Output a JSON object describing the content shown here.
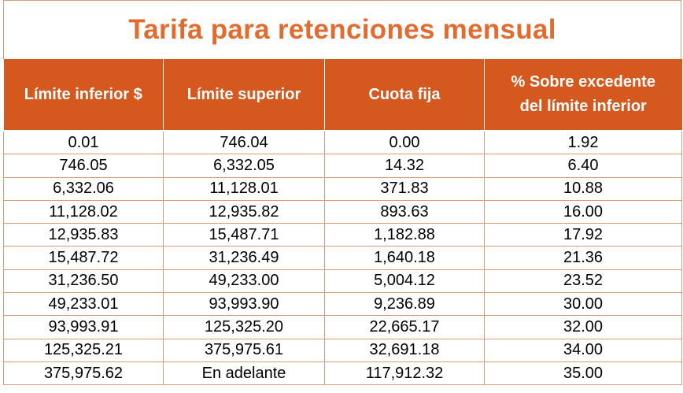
{
  "title": "Tarifa para retenciones mensual",
  "headers": {
    "col1": "Límite inferior $",
    "col2": "Límite superior",
    "col3": "Cuota fija",
    "col4_line1": "% Sobre excedente",
    "col4_line2": "del límite inferior"
  },
  "rows": [
    [
      "0.01",
      "746.04",
      "0.00",
      "1.92"
    ],
    [
      "746.05",
      "6,332.05",
      "14.32",
      "6.40"
    ],
    [
      "6,332.06",
      "11,128.01",
      "371.83",
      "10.88"
    ],
    [
      "11,128.02",
      "12,935.82",
      "893.63",
      "16.00"
    ],
    [
      "12,935.83",
      "15,487.71",
      "1,182.88",
      "17.92"
    ],
    [
      "15,487.72",
      "31,236.49",
      "1,640.18",
      "21.36"
    ],
    [
      "31,236.50",
      "49,233.00",
      "5,004.12",
      "23.52"
    ],
    [
      "49,233.01",
      "93,993.90",
      "9,236.89",
      "30.00"
    ],
    [
      "93,993.91",
      "125,325.20",
      "22,665.17",
      "32.00"
    ],
    [
      "125,325.21",
      "375,975.61",
      "32,691.18",
      "34.00"
    ],
    [
      "375,975.62",
      "En adelante",
      "117,912.32",
      "35.00"
    ]
  ],
  "colors": {
    "title": "#e26b2f",
    "header_bg": "#d5591f",
    "header_text": "#ffffff",
    "grid": "#d59a7a"
  }
}
